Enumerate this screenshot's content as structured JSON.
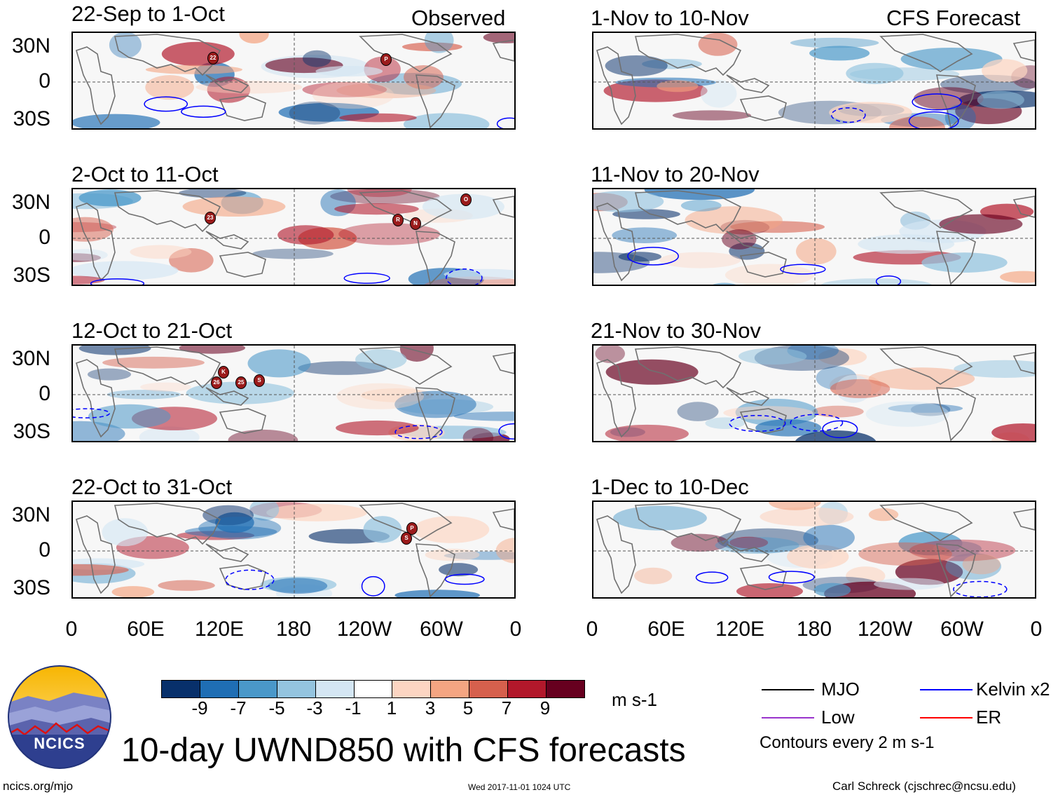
{
  "headers": {
    "observed": "Observed",
    "forecast": "CFS Forecast"
  },
  "observed_panels": [
    {
      "title": "22-Sep to 1-Oct",
      "storms": [
        "22",
        "P"
      ]
    },
    {
      "title": "2-Oct to 11-Oct",
      "storms": [
        "23",
        "R",
        "N",
        "O"
      ]
    },
    {
      "title": "12-Oct to 21-Oct",
      "storms": [
        "K",
        "26",
        "25",
        "S"
      ]
    },
    {
      "title": "22-Oct to 31-Oct",
      "storms": [
        "P",
        "S"
      ]
    }
  ],
  "forecast_panels": [
    {
      "title": "1-Nov to 10-Nov"
    },
    {
      "title": "11-Nov to 20-Nov"
    },
    {
      "title": "21-Nov to 30-Nov"
    },
    {
      "title": "1-Dec to 10-Dec"
    }
  ],
  "lat_labels": [
    "30N",
    "0",
    "30S"
  ],
  "lon_labels": [
    "0",
    "60E",
    "120E",
    "180",
    "120W",
    "60W",
    "0"
  ],
  "colorbar": {
    "colors": [
      "#08306b",
      "#1f6eb4",
      "#4a98c9",
      "#94c4df",
      "#d4e6f3",
      "#ffffff",
      "#fcd5c2",
      "#f4a582",
      "#d6604d",
      "#b2182b",
      "#67001f"
    ],
    "ticks": [
      "-9",
      "-7",
      "-5",
      "-3",
      "-1",
      "1",
      "3",
      "5",
      "7",
      "9"
    ],
    "units": "m s-1"
  },
  "title": "10-day UWND850 with CFS forecasts",
  "legend": {
    "items": [
      {
        "label": "MJO",
        "color": "#000000"
      },
      {
        "label": "Kelvin x2",
        "color": "#0000ff"
      },
      {
        "label": "Low",
        "color": "#9933cc"
      },
      {
        "label": "ER",
        "color": "#ff0000"
      }
    ],
    "note": "Contours every 2 m s-1"
  },
  "logo_text": "NCICS",
  "footer": {
    "url": "ncics.org/mjo",
    "timestamp": "Wed 2017-11-01 1024 UTC",
    "author": "Carl Schreck (cjschrec@ncsu.edu)"
  }
}
